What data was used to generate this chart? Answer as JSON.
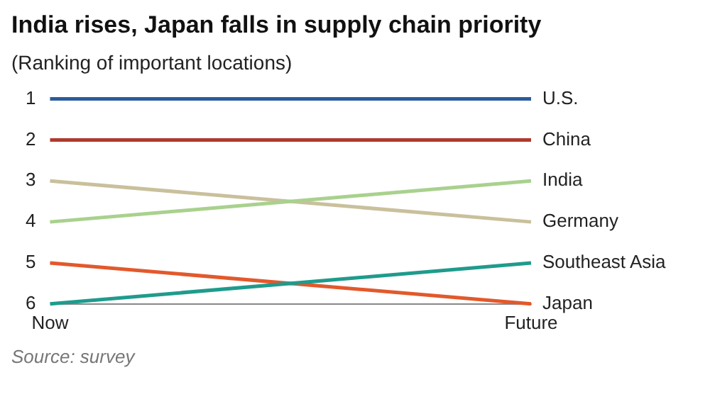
{
  "chart_data": {
    "type": "line",
    "title": "India rises, Japan falls in supply chain priority",
    "subtitle": "(Ranking of important locations)",
    "categories": [
      "Now",
      "Future"
    ],
    "series": [
      {
        "name": "U.S.",
        "color": "#2b5c9c",
        "values": [
          1,
          1
        ]
      },
      {
        "name": "China",
        "color": "#b03a2e",
        "values": [
          2,
          2
        ]
      },
      {
        "name": "India",
        "color": "#a9d18e",
        "values": [
          4,
          3
        ]
      },
      {
        "name": "Germany",
        "color": "#c9c09c",
        "values": [
          3,
          4
        ]
      },
      {
        "name": "Southeast Asia",
        "color": "#1f9b8c",
        "values": [
          6,
          5
        ]
      },
      {
        "name": "Japan",
        "color": "#e2592c",
        "values": [
          5,
          6
        ]
      }
    ],
    "ylim": [
      6,
      1
    ],
    "yticks": [
      1,
      2,
      3,
      4,
      5,
      6
    ],
    "grid": false,
    "legend": false,
    "marker": "none",
    "line_style": "solid",
    "annotations": [
      "Source: survey"
    ]
  }
}
